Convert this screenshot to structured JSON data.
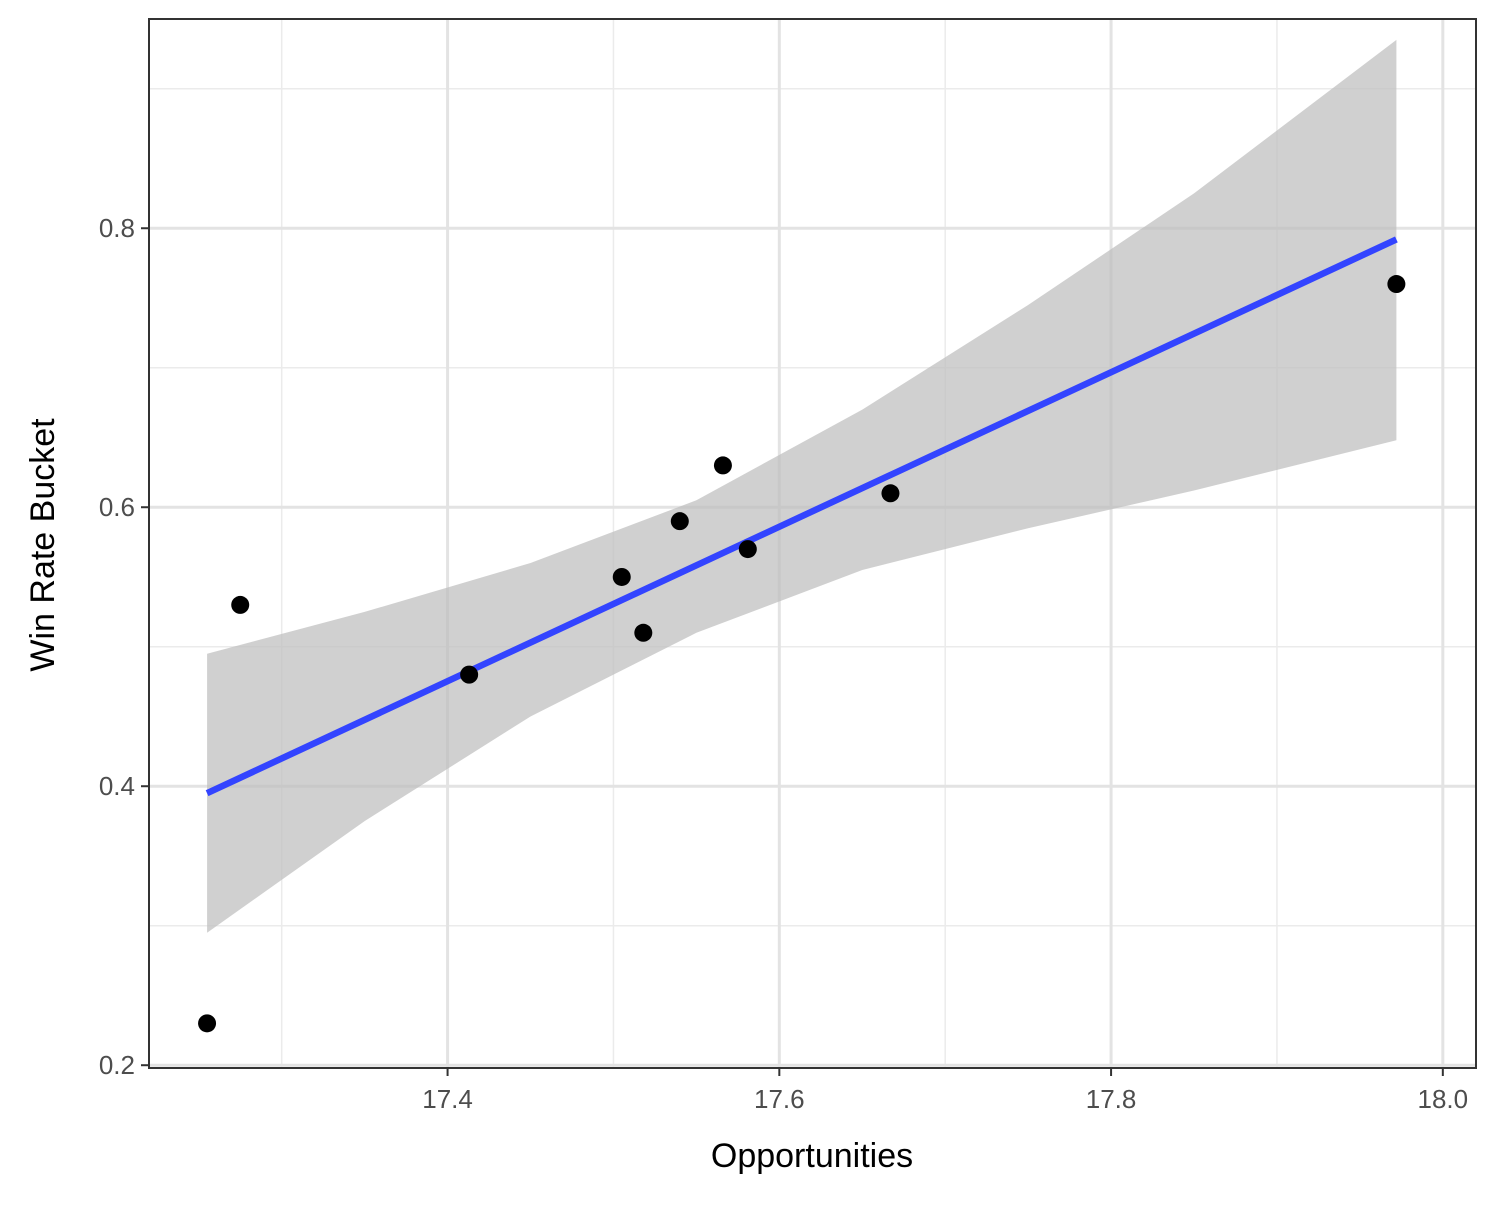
{
  "chart_data": {
    "type": "scatter",
    "title": "",
    "xlabel": "Opportunities",
    "ylabel": "Win Rate Bucket",
    "xlim": [
      17.22,
      18.02
    ],
    "ylim": [
      0.198,
      0.95
    ],
    "x_ticks": [
      17.4,
      17.6,
      17.8,
      18.0
    ],
    "x_tick_labels": [
      "17.4",
      "17.6",
      "17.8",
      "18.0"
    ],
    "y_ticks": [
      0.2,
      0.4,
      0.6,
      0.8
    ],
    "y_tick_labels": [
      "0.2",
      "0.4",
      "0.6",
      "0.8"
    ],
    "x_minor": [
      17.3,
      17.5,
      17.7,
      17.9
    ],
    "y_minor": [
      0.3,
      0.5,
      0.7,
      0.9
    ],
    "grid": true,
    "points": [
      {
        "x": 17.255,
        "y": 0.23
      },
      {
        "x": 17.275,
        "y": 0.53
      },
      {
        "x": 17.413,
        "y": 0.48
      },
      {
        "x": 17.505,
        "y": 0.55
      },
      {
        "x": 17.518,
        "y": 0.51
      },
      {
        "x": 17.54,
        "y": 0.59
      },
      {
        "x": 17.566,
        "y": 0.63
      },
      {
        "x": 17.581,
        "y": 0.57
      },
      {
        "x": 17.667,
        "y": 0.61
      },
      {
        "x": 17.972,
        "y": 0.76
      }
    ],
    "trend_line": {
      "method": "linear",
      "color": "#3344ff",
      "points": [
        {
          "x": 17.255,
          "y": 0.395
        },
        {
          "x": 17.972,
          "y": 0.792
        }
      ]
    },
    "confidence_band": {
      "color": "#bebebe",
      "x": [
        17.255,
        17.35,
        17.45,
        17.55,
        17.65,
        17.75,
        17.85,
        17.972
      ],
      "upper": [
        0.495,
        0.525,
        0.56,
        0.605,
        0.67,
        0.745,
        0.825,
        0.935
      ],
      "lower": [
        0.295,
        0.375,
        0.45,
        0.51,
        0.555,
        0.585,
        0.612,
        0.648
      ]
    }
  }
}
